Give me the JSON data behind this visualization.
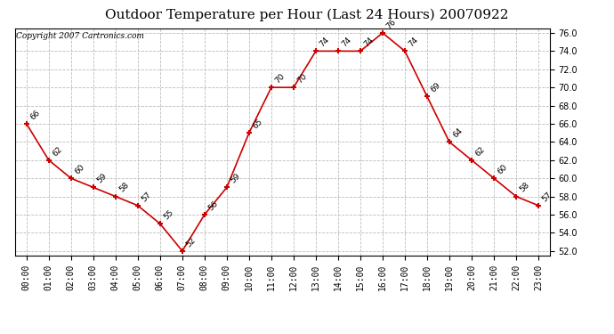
{
  "title": "Outdoor Temperature per Hour (Last 24 Hours) 20070922",
  "copyright": "Copyright 2007 Cartronics.com",
  "hours": [
    "00:00",
    "01:00",
    "02:00",
    "03:00",
    "04:00",
    "05:00",
    "06:00",
    "07:00",
    "08:00",
    "09:00",
    "10:00",
    "11:00",
    "12:00",
    "13:00",
    "14:00",
    "15:00",
    "16:00",
    "17:00",
    "18:00",
    "19:00",
    "20:00",
    "21:00",
    "22:00",
    "23:00"
  ],
  "temps": [
    66,
    62,
    60,
    59,
    58,
    57,
    55,
    52,
    56,
    59,
    65,
    70,
    70,
    74,
    74,
    74,
    76,
    74,
    69,
    64,
    62,
    60,
    58,
    57
  ],
  "ylim_min": 51.5,
  "ylim_max": 76.5,
  "yticks": [
    52.0,
    54.0,
    56.0,
    58.0,
    60.0,
    62.0,
    64.0,
    66.0,
    68.0,
    70.0,
    72.0,
    74.0,
    76.0
  ],
  "line_color": "#cc0000",
  "marker_color": "#cc0000",
  "bg_color": "#ffffff",
  "grid_color": "#bbbbbb",
  "title_fontsize": 11,
  "copyright_fontsize": 6.5,
  "label_fontsize": 6.5,
  "tick_fontsize": 7
}
